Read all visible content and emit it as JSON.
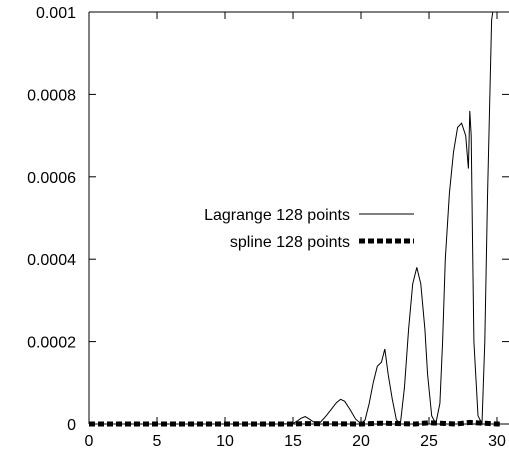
{
  "chart_data": {
    "type": "line",
    "title": "",
    "xlabel": "",
    "ylabel": "",
    "xlim": [
      0,
      30
    ],
    "ylim": [
      0,
      0.001
    ],
    "grid": false,
    "legend_position": "center-right",
    "x_ticks": [
      0,
      5,
      10,
      15,
      20,
      25,
      30
    ],
    "x_tick_labels": [
      "0",
      "5",
      "10",
      "15",
      "20",
      "25",
      "30"
    ],
    "y_ticks": [
      0,
      0.0002,
      0.0004,
      0.0006,
      0.0008,
      0.001
    ],
    "y_tick_labels": [
      "0",
      "0.0002",
      "0.0004",
      "0.0006",
      "0.0008",
      "0.001"
    ],
    "series": [
      {
        "name": "Lagrange 128 points",
        "style": "thin-solid",
        "color": "#000000",
        "x": [
          0,
          14.0,
          15.0,
          15.3,
          15.6,
          15.9,
          16.2,
          16.6,
          17.0,
          17.4,
          17.8,
          18.2,
          18.5,
          18.8,
          19.2,
          19.6,
          20.0,
          20.3,
          20.6,
          20.9,
          21.2,
          21.5,
          21.7,
          21.75,
          21.8,
          22.0,
          22.3,
          22.6,
          22.9,
          23.2,
          23.5,
          23.8,
          24.1,
          24.4,
          24.7,
          24.9,
          25.2,
          25.5,
          25.8,
          26.0,
          26.2,
          26.5,
          26.8,
          27.1,
          27.4,
          27.7,
          27.9,
          28.0,
          28.1,
          28.2,
          28.3,
          28.6,
          28.9,
          29.1,
          29.3,
          29.6,
          29.9,
          30.2,
          30.4
        ],
        "y": [
          0,
          0,
          1e-06,
          7e-06,
          1.4e-05,
          1.8e-05,
          1.2e-05,
          3e-06,
          4e-06,
          1.8e-05,
          3.5e-05,
          5.2e-05,
          6e-05,
          5.5e-05,
          3.5e-05,
          1.2e-05,
          1e-06,
          1e-05,
          5e-05,
          0.0001,
          0.00014,
          0.00015,
          0.000175,
          0.000182,
          0.00017,
          0.00012,
          6e-05,
          1e-05,
          1e-06,
          9e-05,
          0.00023,
          0.00034,
          0.00038,
          0.00034,
          0.00023,
          0.00012,
          2e-05,
          1e-06,
          5e-05,
          0.0002,
          0.0004,
          0.00056,
          0.00066,
          0.00072,
          0.00073,
          0.0007,
          0.00062,
          0.00076,
          0.0007,
          0.00045,
          0.0002,
          2e-05,
          1e-06,
          0.0002,
          0.00055,
          0.00098,
          0.00105,
          0.00108,
          0.0011
        ]
      },
      {
        "name": "spline 128 points",
        "style": "thick-dashed",
        "color": "#000000",
        "x": [
          0,
          5,
          10,
          15,
          16,
          20,
          21.5,
          24,
          25,
          27,
          28,
          30,
          30.4
        ],
        "y": [
          0,
          0,
          0,
          0,
          1e-06,
          0,
          2e-06,
          0,
          3e-06,
          0,
          4e-06,
          0,
          0
        ]
      }
    ]
  }
}
